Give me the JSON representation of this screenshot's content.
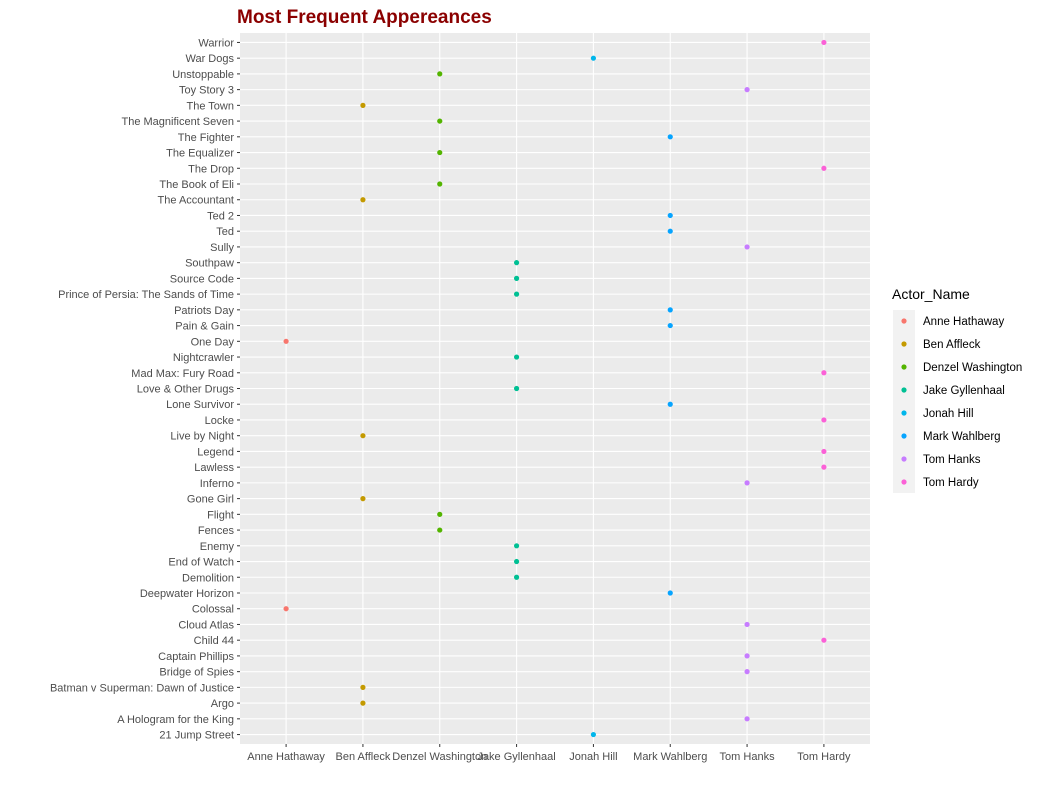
{
  "chart_data": {
    "type": "scatter",
    "title": "Most Frequent Appereances",
    "xlabel": "",
    "ylabel": "",
    "grid": true,
    "legend": {
      "title": "Actor_Name",
      "position": "right"
    },
    "x_categories": [
      "Anne Hathaway",
      "Ben Affleck",
      "Denzel Washington",
      "Jake Gyllenhaal",
      "Jonah Hill",
      "Mark Wahlberg",
      "Tom Hanks",
      "Tom Hardy"
    ],
    "y_categories": [
      "21 Jump Street",
      "A Hologram for the King",
      "Argo",
      "Batman v Superman: Dawn of Justice",
      "Bridge of Spies",
      "Captain Phillips",
      "Child 44",
      "Cloud Atlas",
      "Colossal",
      "Deepwater Horizon",
      "Demolition",
      "End of Watch",
      "Enemy",
      "Fences",
      "Flight",
      "Gone Girl",
      "Inferno",
      "Lawless",
      "Legend",
      "Live by Night",
      "Locke",
      "Lone Survivor",
      "Love & Other Drugs",
      "Mad Max: Fury Road",
      "Nightcrawler",
      "One Day",
      "Pain & Gain",
      "Patriots Day",
      "Prince of Persia: The Sands of Time",
      "Source Code",
      "Southpaw",
      "Sully",
      "Ted",
      "Ted 2",
      "The Accountant",
      "The Book of Eli",
      "The Drop",
      "The Equalizer",
      "The Fighter",
      "The Magnificent Seven",
      "The Town",
      "Toy Story 3",
      "Unstoppable",
      "War Dogs",
      "Warrior"
    ],
    "colors": {
      "Anne Hathaway": "#F8766D",
      "Ben Affleck": "#C49A00",
      "Denzel Washington": "#53B400",
      "Jake Gyllenhaal": "#00C094",
      "Jonah Hill": "#00B6EB",
      "Mark Wahlberg": "#06A4FF",
      "Tom Hanks": "#C77CFF",
      "Tom Hardy": "#FB61D7"
    },
    "points": [
      {
        "movie": "21 Jump Street",
        "actor": "Jonah Hill"
      },
      {
        "movie": "A Hologram for the King",
        "actor": "Tom Hanks"
      },
      {
        "movie": "Argo",
        "actor": "Ben Affleck"
      },
      {
        "movie": "Batman v Superman: Dawn of Justice",
        "actor": "Ben Affleck"
      },
      {
        "movie": "Bridge of Spies",
        "actor": "Tom Hanks"
      },
      {
        "movie": "Captain Phillips",
        "actor": "Tom Hanks"
      },
      {
        "movie": "Child 44",
        "actor": "Tom Hardy"
      },
      {
        "movie": "Cloud Atlas",
        "actor": "Tom Hanks"
      },
      {
        "movie": "Colossal",
        "actor": "Anne Hathaway"
      },
      {
        "movie": "Deepwater Horizon",
        "actor": "Mark Wahlberg"
      },
      {
        "movie": "Demolition",
        "actor": "Jake Gyllenhaal"
      },
      {
        "movie": "End of Watch",
        "actor": "Jake Gyllenhaal"
      },
      {
        "movie": "Enemy",
        "actor": "Jake Gyllenhaal"
      },
      {
        "movie": "Fences",
        "actor": "Denzel Washington"
      },
      {
        "movie": "Flight",
        "actor": "Denzel Washington"
      },
      {
        "movie": "Gone Girl",
        "actor": "Ben Affleck"
      },
      {
        "movie": "Inferno",
        "actor": "Tom Hanks"
      },
      {
        "movie": "Lawless",
        "actor": "Tom Hardy"
      },
      {
        "movie": "Legend",
        "actor": "Tom Hardy"
      },
      {
        "movie": "Live by Night",
        "actor": "Ben Affleck"
      },
      {
        "movie": "Locke",
        "actor": "Tom Hardy"
      },
      {
        "movie": "Lone Survivor",
        "actor": "Mark Wahlberg"
      },
      {
        "movie": "Love & Other Drugs",
        "actor": "Jake Gyllenhaal"
      },
      {
        "movie": "Mad Max: Fury Road",
        "actor": "Tom Hardy"
      },
      {
        "movie": "Nightcrawler",
        "actor": "Jake Gyllenhaal"
      },
      {
        "movie": "One Day",
        "actor": "Anne Hathaway"
      },
      {
        "movie": "Pain & Gain",
        "actor": "Mark Wahlberg"
      },
      {
        "movie": "Patriots Day",
        "actor": "Mark Wahlberg"
      },
      {
        "movie": "Prince of Persia: The Sands of Time",
        "actor": "Jake Gyllenhaal"
      },
      {
        "movie": "Source Code",
        "actor": "Jake Gyllenhaal"
      },
      {
        "movie": "Southpaw",
        "actor": "Jake Gyllenhaal"
      },
      {
        "movie": "Sully",
        "actor": "Tom Hanks"
      },
      {
        "movie": "Ted",
        "actor": "Mark Wahlberg"
      },
      {
        "movie": "Ted 2",
        "actor": "Mark Wahlberg"
      },
      {
        "movie": "The Accountant",
        "actor": "Ben Affleck"
      },
      {
        "movie": "The Book of Eli",
        "actor": "Denzel Washington"
      },
      {
        "movie": "The Drop",
        "actor": "Tom Hardy"
      },
      {
        "movie": "The Equalizer",
        "actor": "Denzel Washington"
      },
      {
        "movie": "The Fighter",
        "actor": "Mark Wahlberg"
      },
      {
        "movie": "The Magnificent Seven",
        "actor": "Denzel Washington"
      },
      {
        "movie": "The Town",
        "actor": "Ben Affleck"
      },
      {
        "movie": "Toy Story 3",
        "actor": "Tom Hanks"
      },
      {
        "movie": "Unstoppable",
        "actor": "Denzel Washington"
      },
      {
        "movie": "War Dogs",
        "actor": "Jonah Hill"
      },
      {
        "movie": "Warrior",
        "actor": "Tom Hardy"
      }
    ]
  }
}
